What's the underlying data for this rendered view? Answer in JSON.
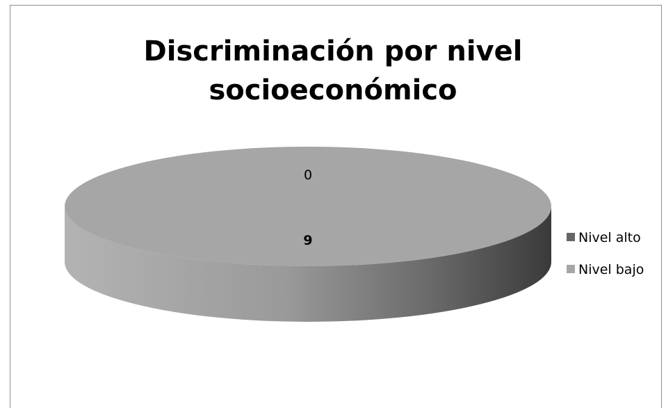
{
  "chart_data": {
    "type": "pie",
    "title_lines": [
      "Discriminación por nivel",
      "socioeconómico"
    ],
    "categories": [
      "Nivel alto",
      "Nivel bajo"
    ],
    "values": [
      0,
      9
    ],
    "data_labels": [
      "0",
      "9"
    ],
    "colors": {
      "Nivel alto": "#666666",
      "Nivel bajo": "#a6a6a6"
    },
    "legend_position": "right",
    "style": "3d"
  }
}
